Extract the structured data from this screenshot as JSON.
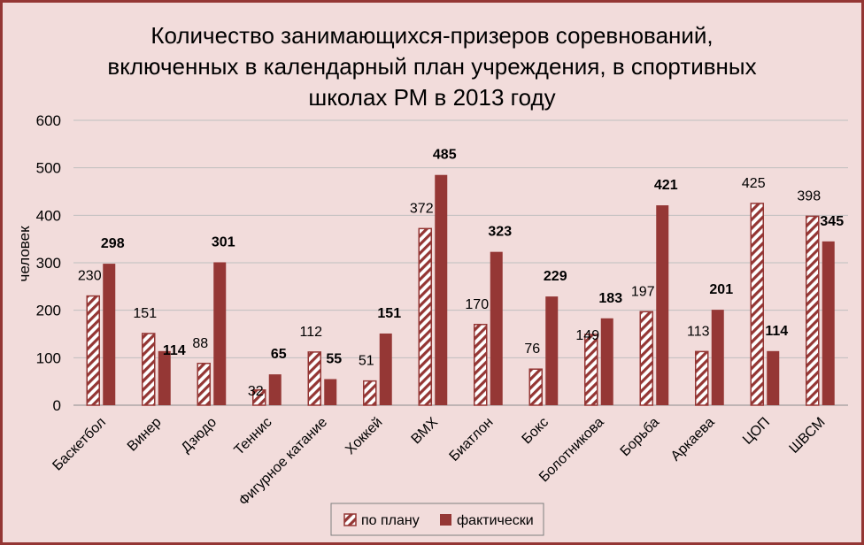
{
  "chart_data": {
    "type": "bar",
    "title_lines": [
      "Количество занимающихся-призеров соревнований,",
      "включенных в календарный план учреждения, в спортивных",
      "школах РМ в 2013 году"
    ],
    "ylabel": "человек",
    "xlabel": "",
    "ylim": [
      0,
      600
    ],
    "yticks": [
      0,
      100,
      200,
      300,
      400,
      500,
      600
    ],
    "grid": true,
    "legend_position": "bottom",
    "categories": [
      "Баскетбол",
      "Винер",
      "Дзюдо",
      "Теннис",
      "Фигурное катание",
      "Хоккей",
      "BMX",
      "Биатлон",
      "Бокс",
      "Болотникова",
      "Борьба",
      "Аркаева",
      "ЦОП",
      "ШВСМ"
    ],
    "series": [
      {
        "name": "по плану",
        "values": [
          230,
          151,
          88,
          32,
          112,
          51,
          372,
          170,
          76,
          149,
          197,
          113,
          425,
          398
        ],
        "color": "#943634",
        "pattern": "hatched"
      },
      {
        "name": "фактически",
        "values": [
          298,
          114,
          301,
          65,
          55,
          151,
          485,
          323,
          229,
          183,
          421,
          201,
          114,
          345
        ],
        "color": "#953735"
      }
    ]
  }
}
